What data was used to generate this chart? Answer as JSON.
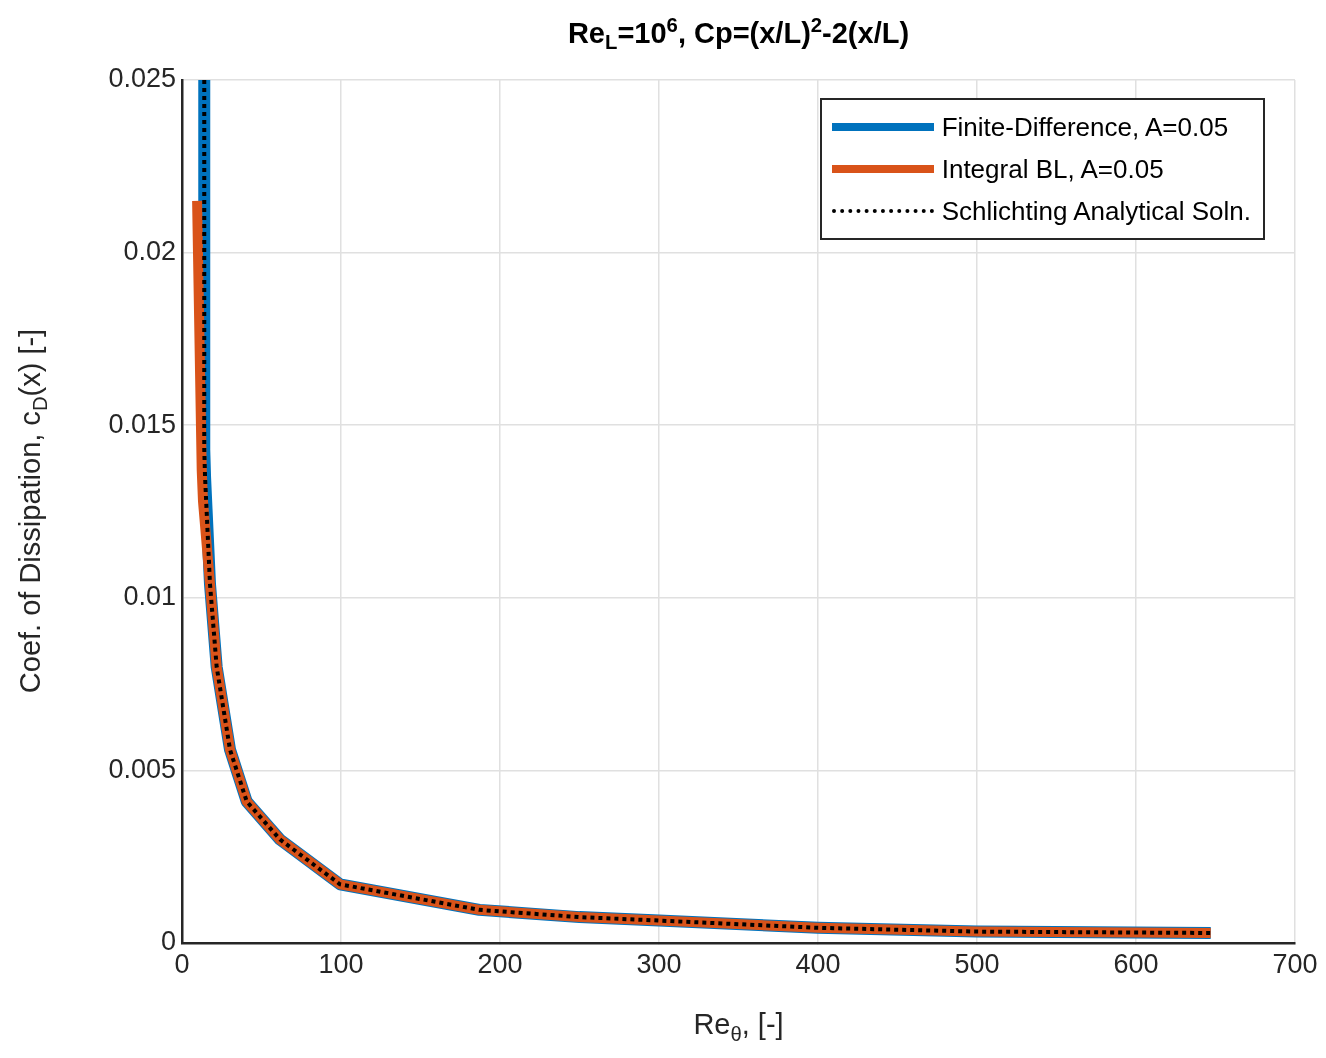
{
  "chart_data": {
    "type": "line",
    "title": "Re$_{L}$=10$^{6}$, Cp=(x/L)$^{2}$-2(x/L)",
    "xlabel": "Re$_{θ}$, [-]",
    "ylabel": "Coef. of Dissipation, c$_{D}$(x) [-]",
    "xlim": [
      0,
      700
    ],
    "xticks": [
      0,
      100,
      200,
      300,
      400,
      500,
      600,
      700
    ],
    "ylim": [
      0,
      0.025
    ],
    "yticks": [
      0,
      0.005,
      0.01,
      0.015,
      0.02,
      0.025
    ],
    "grid": true,
    "legend": "top right",
    "series": [
      {
        "name": "Finite-Difference, A=0.05",
        "color": "#0072bd",
        "line_style": "solid",
        "x": [
          14,
          14,
          14.5,
          17.6,
          21.8,
          30.2,
          40.7,
          61.6,
          99.4,
          187,
          250,
          300,
          400,
          500,
          647
        ],
        "values": [
          0.025,
          0.0143,
          0.0135,
          0.0104,
          0.008,
          0.0056,
          0.0041,
          0.003,
          0.0017,
          0.00096,
          0.00075,
          0.00065,
          0.00044,
          0.00033,
          0.00029
        ]
      },
      {
        "name": "Integral BL, A=0.05",
        "color": "#d95319",
        "line_style": "solid",
        "x": [
          9.5,
          12.4,
          13.2,
          17.6,
          21.8,
          30.2,
          40.7,
          61.6,
          99.4,
          187,
          250,
          300,
          400,
          500,
          647
        ],
        "values": [
          0.0215,
          0.0137,
          0.0128,
          0.0104,
          0.008,
          0.0056,
          0.0041,
          0.003,
          0.0017,
          0.00096,
          0.00075,
          0.00065,
          0.00044,
          0.00033,
          0.00029
        ]
      },
      {
        "name": "Schlichting Analytical Soln.",
        "color": "#000000",
        "line_style": "dotted",
        "x": [
          14,
          14,
          14.5,
          17.6,
          21.8,
          30.2,
          40.7,
          61.6,
          99.4,
          187,
          250,
          300,
          400,
          500,
          647
        ],
        "values": [
          0.025,
          0.0143,
          0.0135,
          0.0104,
          0.008,
          0.0056,
          0.0041,
          0.003,
          0.0017,
          0.00096,
          0.00075,
          0.00065,
          0.00044,
          0.00033,
          0.00029
        ]
      }
    ]
  }
}
